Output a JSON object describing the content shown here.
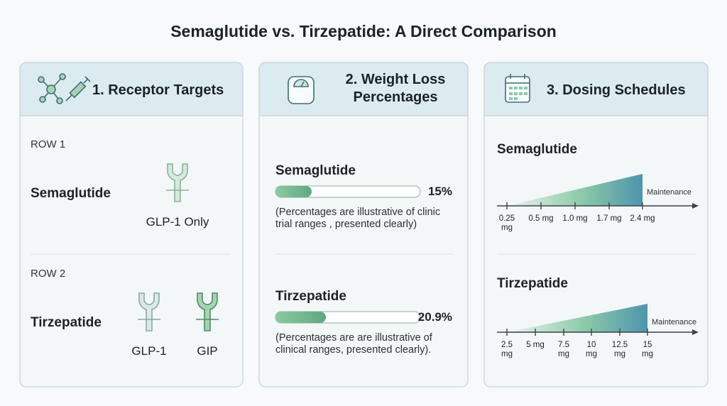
{
  "title": "Semaglutide vs. Tirzepatide: A Direct Comparison",
  "panels": [
    {
      "title": "1. Receptor Targets",
      "rows": [
        {
          "row_label": "ROW 1",
          "drug": "Semaglutide",
          "receptors": [
            "GLP-1 Only"
          ]
        },
        {
          "row_label": "ROW 2",
          "drug": "Tirzepatide",
          "receptors": [
            "GLP-1",
            "GIP"
          ]
        }
      ]
    },
    {
      "title": "2. Weight Loss Percentages",
      "xlim": [
        0,
        60
      ],
      "items": [
        {
          "drug": "Semaglutide",
          "value": 15,
          "value_label": "15%",
          "note": "(Percentages are illustrative of clinic trial ranges  , presented clearly)"
        },
        {
          "drug": "Tirzepatide",
          "value": 20.9,
          "value_label": "20.9%",
          "note": "(Percentages are are illustrative of clinical ranges, presented clearly)."
        }
      ]
    },
    {
      "title": "3. Dosing Schedules",
      "schedules": [
        {
          "drug": "Semaglutide",
          "doses": [
            "0.25 mg",
            "0.5 mg",
            "1.0 mg",
            "1.7 mg",
            "2.4 mg"
          ],
          "end_label": "Maintenance"
        },
        {
          "drug": "Tirzepatide",
          "doses": [
            "2.5 mg",
            "5 mg",
            "7.5 mg",
            "10 mg",
            "12.5 mg",
            "15 mg"
          ],
          "end_label": "Maintenance"
        }
      ]
    }
  ]
}
